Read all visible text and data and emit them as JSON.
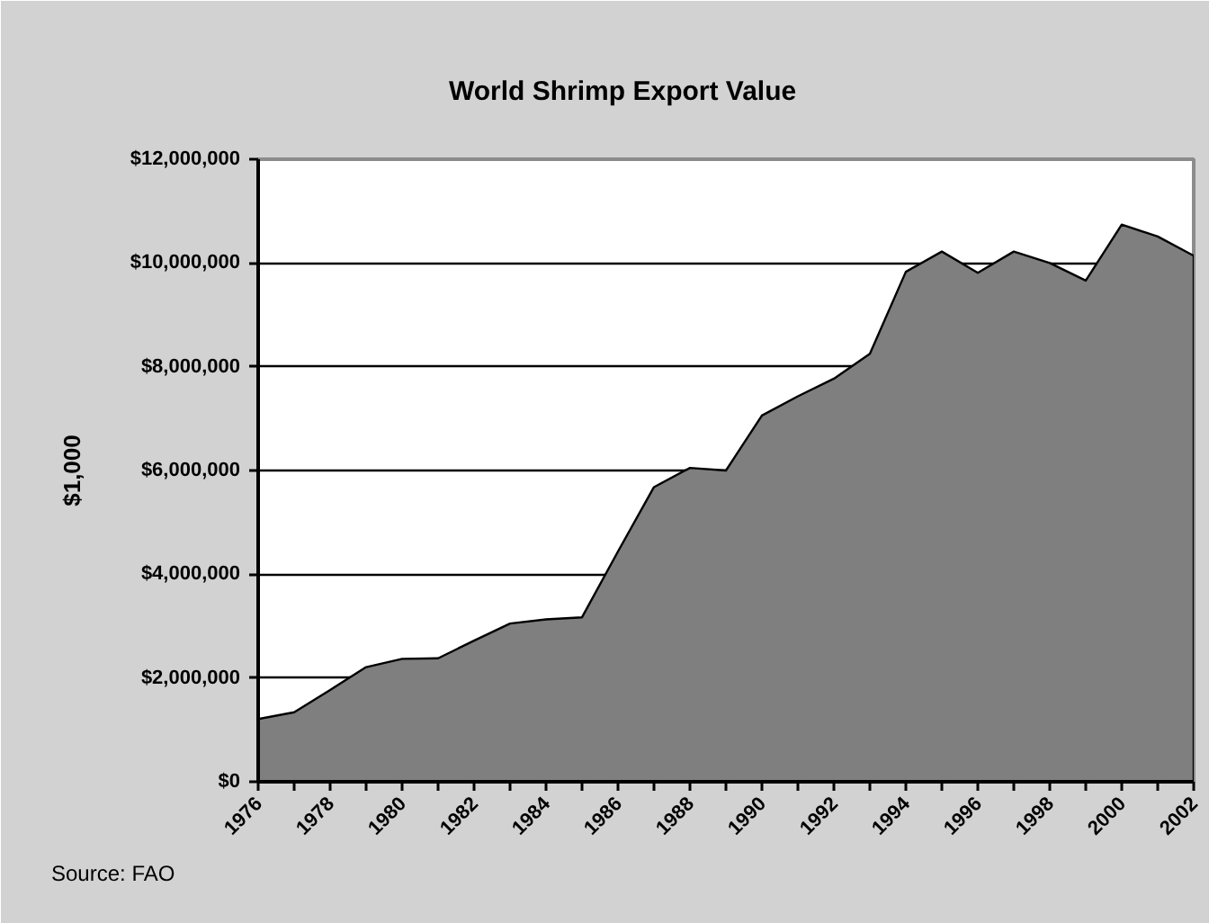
{
  "chart_data": {
    "type": "area",
    "title": "World Shrimp Export Value",
    "ylabel": "$1,000",
    "annotations": [
      "Source: FAO"
    ],
    "x": [
      1976,
      1977,
      1978,
      1979,
      1980,
      1981,
      1982,
      1983,
      1984,
      1985,
      1986,
      1987,
      1988,
      1989,
      1990,
      1991,
      1992,
      1993,
      1994,
      1995,
      1996,
      1997,
      1998,
      1999,
      2000,
      2001,
      2002
    ],
    "series": [
      {
        "color": "#7f7f7f",
        "values": [
          1210000,
          1340000,
          1770000,
          2210000,
          2370000,
          2380000,
          2720000,
          3050000,
          3130000,
          3170000,
          4440000,
          5680000,
          6050000,
          6000000,
          7060000,
          7430000,
          7770000,
          8250000,
          9830000,
          10220000,
          9810000,
          10220000,
          10000000,
          9660000,
          10740000,
          10510000,
          10140000
        ]
      }
    ],
    "xlim": [
      1976,
      2002
    ],
    "xticks": [
      1976,
      {
        "value": 1977,
        "label": null
      },
      1978,
      {
        "value": 1979,
        "label": null
      },
      1980,
      {
        "value": 1981,
        "label": null
      },
      1982,
      {
        "value": 1983,
        "label": null
      },
      1984,
      {
        "value": 1985,
        "label": null
      },
      1986,
      {
        "value": 1987,
        "label": null
      },
      1988,
      {
        "value": 1989,
        "label": null
      },
      1990,
      {
        "value": 1991,
        "label": null
      },
      1992,
      {
        "value": 1993,
        "label": null
      },
      1994,
      {
        "value": 1995,
        "label": null
      },
      1996,
      {
        "value": 1997,
        "label": null
      },
      1998,
      {
        "value": 1999,
        "label": null
      },
      2000,
      {
        "value": 2001,
        "label": null
      },
      2002
    ],
    "ylim": [
      0,
      12000000
    ],
    "yticks": [
      {
        "value": 0,
        "label": "$0"
      },
      {
        "value": 2000000,
        "label": "$2,000,000"
      },
      {
        "value": 4000000,
        "label": "$4,000,000"
      },
      {
        "value": 6000000,
        "label": "$6,000,000"
      },
      {
        "value": 8000000,
        "label": "$8,000,000"
      },
      {
        "value": 10000000,
        "label": "$10,000,000"
      },
      {
        "value": 12000000,
        "label": "$12,000,000"
      }
    ],
    "grid": "y"
  }
}
